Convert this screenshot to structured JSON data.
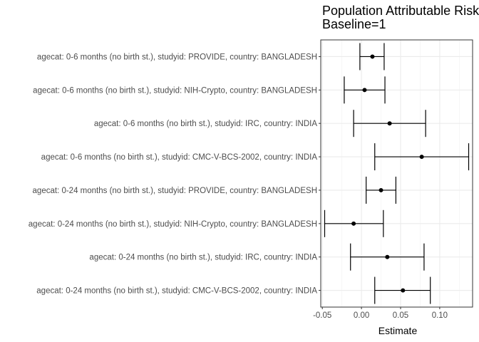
{
  "chart_data": {
    "type": "forest",
    "title_lines": [
      "Population Attributable Risk",
      "Baseline=1"
    ],
    "xlabel": "Estimate",
    "xlim": [
      -0.052,
      0.142
    ],
    "xticks": [
      -0.05,
      0.0,
      0.05,
      0.1
    ],
    "xtick_labels": [
      "-0.05",
      "0.00",
      "0.05",
      "0.10"
    ],
    "grid": true,
    "rows": [
      {
        "label": "agecat: 0-6 months (no birth st.), studyid: PROVIDE, country: BANGLADESH",
        "estimate": 0.014,
        "lower": -0.002,
        "upper": 0.029
      },
      {
        "label": "agecat: 0-6 months (no birth st.), studyid: NIH-Crypto, country: BANGLADESH",
        "estimate": 0.004,
        "lower": -0.022,
        "upper": 0.03
      },
      {
        "label": "agecat: 0-6 months (no birth st.), studyid: IRC, country: INDIA",
        "estimate": 0.036,
        "lower": -0.01,
        "upper": 0.082
      },
      {
        "label": "agecat: 0-6 months (no birth st.), studyid: CMC-V-BCS-2002, country: INDIA",
        "estimate": 0.077,
        "lower": 0.017,
        "upper": 0.137
      },
      {
        "label": "agecat: 0-24 months (no birth st.), studyid: PROVIDE, country: BANGLADESH",
        "estimate": 0.025,
        "lower": 0.006,
        "upper": 0.044
      },
      {
        "label": "agecat: 0-24 months (no birth st.), studyid: NIH-Crypto, country: BANGLADESH",
        "estimate": -0.01,
        "lower": -0.047,
        "upper": 0.028
      },
      {
        "label": "agecat: 0-24 months (no birth st.), studyid: IRC, country: INDIA",
        "estimate": 0.033,
        "lower": -0.014,
        "upper": 0.08
      },
      {
        "label": "agecat: 0-24 months (no birth st.), studyid: CMC-V-BCS-2002, country: INDIA",
        "estimate": 0.053,
        "lower": 0.017,
        "upper": 0.088
      }
    ]
  }
}
